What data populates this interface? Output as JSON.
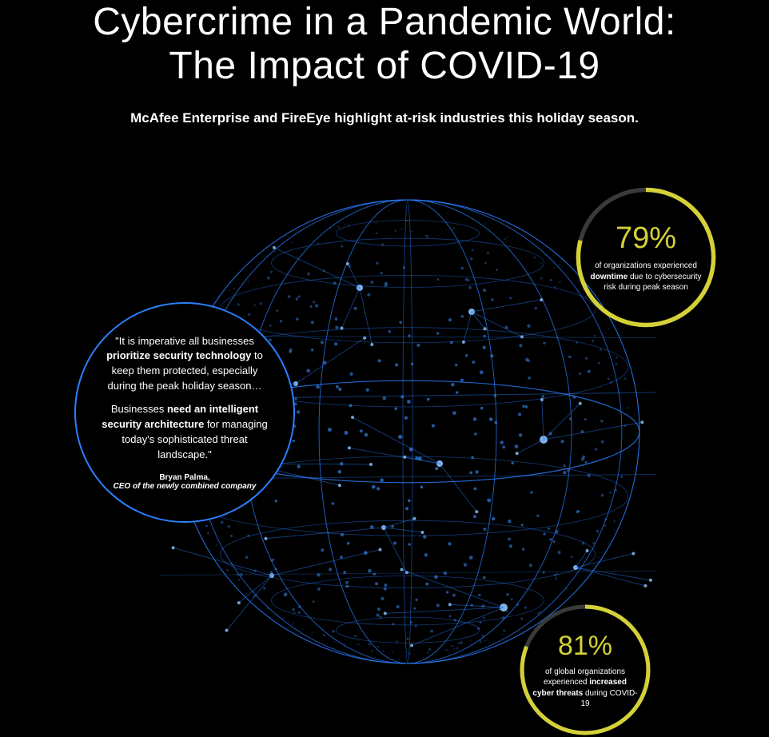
{
  "header": {
    "title_line1": "Cybercrime in a Pandemic World:",
    "title_line2": "The Impact of COVID-19",
    "subtitle": "McAfee Enterprise and FireEye highlight at-risk industries this holiday season."
  },
  "quote": {
    "p1_pre": "\"It is imperative all businesses ",
    "p1_b": "prioritize security technology",
    "p1_post": " to keep them protected, especially during the peak holiday season…",
    "p2_pre": "Businesses ",
    "p2_b": "need an intelligent security architecture",
    "p2_post": " for managing today's sophisticated threat landscape.\"",
    "author": "Bryan Palma,",
    "role": "CEO of the newly combined company",
    "border_color": "#2a7fff"
  },
  "stats": [
    {
      "id": "stat-downtime",
      "value": "79%",
      "percent": 79,
      "desc_parts": [
        "of organizations experienced ",
        "downtime",
        " due to cybersecurity risk during peak season"
      ],
      "ring_color": "#d4d138",
      "ring_bg": "#3a3a3a",
      "ring_width": 3,
      "size": 180
    },
    {
      "id": "stat-threats",
      "value": "81%",
      "percent": 81,
      "desc_parts": [
        "of global organizations experienced ",
        "increased cyber threats",
        " during COVID-19"
      ],
      "ring_color": "#d4d138",
      "ring_bg": "#3a3a3a",
      "ring_width": 3,
      "size": 168
    }
  ],
  "globe": {
    "stroke_color": "#2a7fff",
    "dot_color": "#3a8fff",
    "bright_dot": "#8fc5ff"
  },
  "colors": {
    "background": "#000000",
    "text": "#ffffff",
    "accent_yellow": "#d4d138",
    "accent_blue": "#2a7fff"
  }
}
